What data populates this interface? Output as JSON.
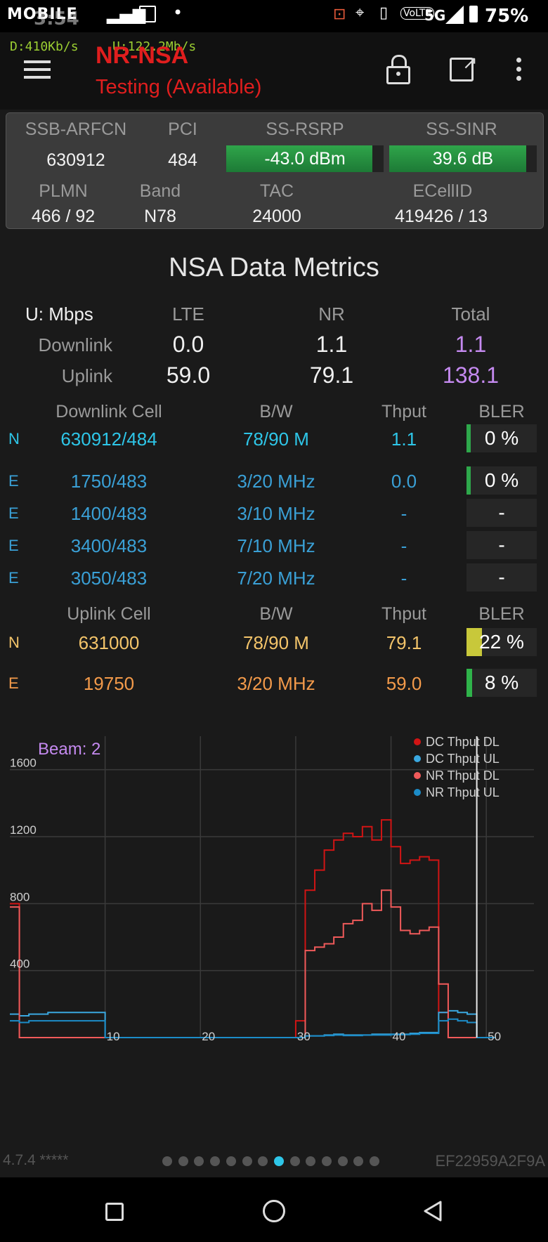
{
  "status_bar": {
    "carrier": "MOBILE",
    "time": "3:54",
    "network": "5G",
    "battery": "75%"
  },
  "top_bar": {
    "dl_speed": "D:410Kb/s",
    "ul_speed": "U:122.2Mb/s",
    "mode": "NR-NSA",
    "state": "Testing (Available)"
  },
  "cell_info": {
    "headers": [
      "SSB-ARFCN",
      "PCI",
      "SS-RSRP",
      "SS-SINR"
    ],
    "ssb_arfcn": "630912",
    "pci": "484",
    "rsrp": "-43.0 dBm",
    "rsrp_level": 0.93,
    "sinr": "39.6 dB",
    "sinr_level": 0.93,
    "headers2": [
      "PLMN",
      "Band",
      "TAC",
      "ECellID"
    ],
    "plmn": "466 / 92",
    "band": "N78",
    "tac": "24000",
    "ecellid": "419426 / 13"
  },
  "metrics": {
    "title": "NSA Data Metrics",
    "unit_label": "U: Mbps",
    "col_lte": "LTE",
    "col_nr": "NR",
    "col_total": "Total",
    "rows": [
      {
        "label": "Downlink",
        "lte": "0.0",
        "nr": "1.1",
        "total": "1.1"
      },
      {
        "label": "Uplink",
        "lte": "59.0",
        "nr": "79.1",
        "total": "138.1"
      }
    ]
  },
  "downlink": {
    "headers": [
      "Downlink Cell",
      "B/W",
      "Thput",
      "BLER"
    ],
    "rows": [
      {
        "type": "N",
        "cell": "630912/484",
        "bw": "78/90 M",
        "thput": "1.1",
        "bler": "0",
        "unit": "%",
        "level": 0.04,
        "color": "#2ea84b"
      },
      {
        "type": "E",
        "cell": "1750/483",
        "bw": "3/20 MHz",
        "thput": "0.0",
        "bler": "0",
        "unit": "%",
        "level": 0.04,
        "color": "#2ea84b"
      },
      {
        "type": "E",
        "cell": "1400/483",
        "bw": "3/10 MHz",
        "thput": "-",
        "bler": "-",
        "unit": "",
        "level": 0,
        "color": "#2ea84b"
      },
      {
        "type": "E",
        "cell": "3400/483",
        "bw": "7/10 MHz",
        "thput": "-",
        "bler": "-",
        "unit": "",
        "level": 0,
        "color": "#2ea84b"
      },
      {
        "type": "E",
        "cell": "3050/483",
        "bw": "7/20 MHz",
        "thput": "-",
        "bler": "-",
        "unit": "",
        "level": 0,
        "color": "#2ea84b"
      }
    ]
  },
  "uplink": {
    "headers": [
      "Uplink Cell",
      "B/W",
      "Thput",
      "BLER"
    ],
    "rows": [
      {
        "type": "N",
        "cell": "631000",
        "bw": "78/90 M",
        "thput": "79.1",
        "bler": "22",
        "unit": "%",
        "level": 0.22,
        "color": "#c8c83a"
      },
      {
        "type": "E",
        "cell": "19750",
        "bw": "3/20 MHz",
        "thput": "59.0",
        "bler": "8",
        "unit": "%",
        "level": 0.08,
        "color": "#2fb34a"
      }
    ]
  },
  "chart_data": {
    "type": "line",
    "title": "",
    "annotation": "Beam: 2",
    "xlabel": "",
    "ylabel": "",
    "xlim": [
      0,
      55
    ],
    "ylim": [
      0,
      1800
    ],
    "xticks": [
      10,
      20,
      30,
      40,
      50
    ],
    "yticks": [
      400,
      800,
      1200,
      1600
    ],
    "grid": true,
    "legend_position": "top-right",
    "marker_x": 49,
    "series": [
      {
        "name": "DC Thput DL",
        "color": "#d11414",
        "x": [
          0,
          1,
          2,
          3,
          4,
          5,
          6,
          7,
          8,
          9,
          10,
          11,
          12,
          13,
          14,
          15,
          16,
          17,
          18,
          19,
          20,
          21,
          22,
          23,
          24,
          25,
          26,
          27,
          28,
          29,
          30,
          31,
          32,
          33,
          34,
          35,
          36,
          37,
          38,
          39,
          40,
          41,
          42,
          43,
          44,
          45,
          46,
          47,
          48,
          49,
          50
        ],
        "y": [
          800,
          0,
          0,
          0,
          0,
          0,
          0,
          0,
          0,
          0,
          0,
          0,
          0,
          0,
          0,
          0,
          0,
          0,
          0,
          0,
          0,
          0,
          0,
          0,
          0,
          0,
          0,
          0,
          0,
          0,
          100,
          880,
          1000,
          1120,
          1180,
          1220,
          1200,
          1260,
          1180,
          1300,
          1140,
          1040,
          1060,
          1080,
          1060,
          150,
          0,
          0,
          0,
          0,
          0
        ]
      },
      {
        "name": "DC Thput UL",
        "color": "#3aa8e0",
        "x": [
          0,
          1,
          2,
          3,
          4,
          5,
          6,
          7,
          8,
          9,
          10,
          11,
          12,
          13,
          14,
          15,
          16,
          17,
          18,
          19,
          20,
          21,
          22,
          23,
          24,
          25,
          26,
          27,
          28,
          29,
          30,
          31,
          32,
          33,
          34,
          35,
          36,
          37,
          38,
          39,
          40,
          41,
          42,
          43,
          44,
          45,
          46,
          47,
          48,
          49,
          50
        ],
        "y": [
          140,
          130,
          140,
          140,
          150,
          150,
          150,
          150,
          150,
          150,
          0,
          0,
          0,
          0,
          0,
          0,
          0,
          0,
          0,
          0,
          0,
          0,
          0,
          0,
          0,
          0,
          0,
          0,
          0,
          0,
          0,
          10,
          10,
          15,
          20,
          15,
          15,
          15,
          20,
          20,
          20,
          20,
          25,
          30,
          30,
          150,
          160,
          150,
          140,
          0,
          0
        ]
      },
      {
        "name": "NR Thput DL",
        "color": "#f05a5a",
        "x": [
          0,
          1,
          2,
          3,
          4,
          5,
          6,
          7,
          8,
          9,
          10,
          11,
          12,
          13,
          14,
          15,
          16,
          17,
          18,
          19,
          20,
          21,
          22,
          23,
          24,
          25,
          26,
          27,
          28,
          29,
          30,
          31,
          32,
          33,
          34,
          35,
          36,
          37,
          38,
          39,
          40,
          41,
          42,
          43,
          44,
          45,
          46,
          47,
          48,
          49,
          50
        ],
        "y": [
          780,
          0,
          0,
          0,
          0,
          0,
          0,
          0,
          0,
          0,
          0,
          0,
          0,
          0,
          0,
          0,
          0,
          0,
          0,
          0,
          0,
          0,
          0,
          0,
          0,
          0,
          0,
          0,
          0,
          0,
          0,
          520,
          540,
          560,
          600,
          680,
          700,
          800,
          760,
          880,
          780,
          640,
          620,
          640,
          660,
          320,
          0,
          0,
          0,
          0,
          0
        ]
      },
      {
        "name": "NR Thput UL",
        "color": "#1c8cc8",
        "x": [
          0,
          1,
          2,
          3,
          4,
          5,
          6,
          7,
          8,
          9,
          10,
          11,
          12,
          13,
          14,
          15,
          16,
          17,
          18,
          19,
          20,
          21,
          22,
          23,
          24,
          25,
          26,
          27,
          28,
          29,
          30,
          31,
          32,
          33,
          34,
          35,
          36,
          37,
          38,
          39,
          40,
          41,
          42,
          43,
          44,
          45,
          46,
          47,
          48,
          49,
          50
        ],
        "y": [
          100,
          90,
          100,
          100,
          100,
          100,
          100,
          100,
          100,
          100,
          0,
          0,
          0,
          0,
          0,
          0,
          0,
          0,
          0,
          0,
          0,
          0,
          0,
          0,
          0,
          0,
          0,
          0,
          0,
          0,
          0,
          10,
          10,
          12,
          15,
          12,
          12,
          15,
          15,
          15,
          18,
          18,
          20,
          25,
          25,
          100,
          110,
          100,
          90,
          0,
          0
        ]
      }
    ]
  },
  "footer": {
    "version": "4.7.4 *****",
    "device_id": "EF22959A2F9A",
    "pages": 14,
    "active_page": 8
  },
  "colors": {
    "title_red": "#e01e1e",
    "accent_cyan": "#2ec6e8",
    "total_purple": "#c58af0"
  }
}
